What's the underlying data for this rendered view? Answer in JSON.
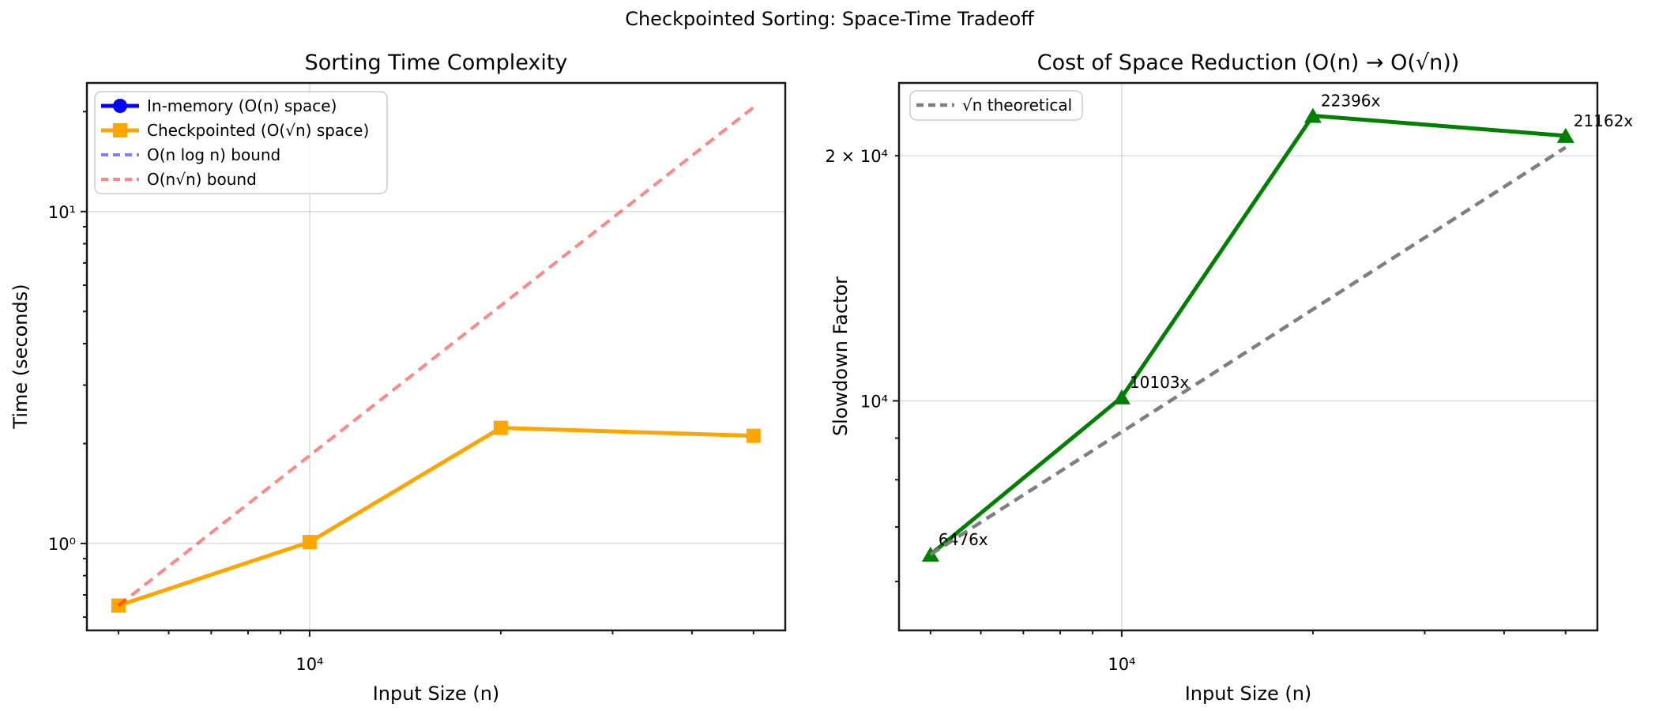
{
  "figure": {
    "suptitle": "Checkpointed Sorting: Space-Time Tradeoff",
    "background_color": "#ffffff",
    "text_color": "#000000",
    "grid_color": "rgba(176,176,176,0.4)",
    "spine_color": "#1a1a1a"
  },
  "chart_data": [
    {
      "type": "line",
      "title": "Sorting Time Complexity",
      "xlabel": "Input Size (n)",
      "ylabel": "Time (seconds)",
      "xscale": "log",
      "yscale": "log",
      "xlim": [
        4460,
        56100
      ],
      "ylim": [
        0.547,
        24.4
      ],
      "grid": true,
      "legend_position": "upper left",
      "x_ticks": [
        {
          "value": 10000,
          "label": "10⁴"
        }
      ],
      "y_ticks": [
        {
          "value": 1,
          "label": "10⁰"
        },
        {
          "value": 10,
          "label": "10¹"
        }
      ],
      "series": [
        {
          "name": "In-memory (O(n) space)",
          "color": "#0000ff",
          "linestyle": "solid",
          "linewidth": 5,
          "marker": "circle",
          "in_legend": true,
          "visible_in_view": false,
          "x": [],
          "y": []
        },
        {
          "name": "Checkpointed (O(√n) space)",
          "color": "#ffa500",
          "linestyle": "solid",
          "linewidth": 5,
          "marker": "square",
          "in_legend": true,
          "visible_in_view": true,
          "x": [
            5000,
            10000,
            20000,
            50000
          ],
          "y": [
            0.65,
            1.01,
            2.23,
            2.11
          ]
        },
        {
          "name": "O(n log n) bound",
          "color": "rgba(0,0,255,0.5)",
          "linestyle": "dashed",
          "linewidth": 4,
          "marker": null,
          "in_legend": true,
          "visible_in_view": false,
          "x": [],
          "y": []
        },
        {
          "name": "O(n√n) bound",
          "color": "rgba(255,0,0,0.47)",
          "linestyle": "dashed",
          "linewidth": 4,
          "marker": null,
          "in_legend": true,
          "visible_in_view": true,
          "x": [
            5000,
            50000
          ],
          "y": [
            0.65,
            20.6
          ]
        }
      ]
    },
    {
      "type": "line",
      "title": "Cost of Space Reduction (O(n) → O(√n))",
      "xlabel": "Input Size (n)",
      "ylabel": "Slowdown Factor",
      "xscale": "log",
      "yscale": "log",
      "xlim": [
        4460,
        56100
      ],
      "ylim": [
        5225,
        24570
      ],
      "grid": true,
      "legend_position": "upper left",
      "x_ticks": [
        {
          "value": 10000,
          "label": "10⁴"
        }
      ],
      "y_ticks": [
        {
          "value": 10000,
          "label": "10⁴"
        },
        {
          "value": 20000,
          "label": "2 × 10⁴"
        }
      ],
      "series": [
        {
          "name": "slowdown",
          "color": "#008000",
          "linestyle": "solid",
          "linewidth": 5,
          "marker": "triangle",
          "in_legend": false,
          "visible_in_view": true,
          "x": [
            5000,
            10000,
            20000,
            50000
          ],
          "y": [
            6476,
            10103,
            22396,
            21162
          ],
          "point_labels": [
            "6476x",
            "10103x",
            "22396x",
            "21162x"
          ]
        },
        {
          "name": "√n theoretical",
          "color": "#7f7f7f",
          "linestyle": "dashed",
          "linewidth": 4.5,
          "marker": null,
          "in_legend": true,
          "visible_in_view": true,
          "x": [
            5000,
            50000
          ],
          "y": [
            6476,
            20478
          ]
        }
      ]
    }
  ]
}
